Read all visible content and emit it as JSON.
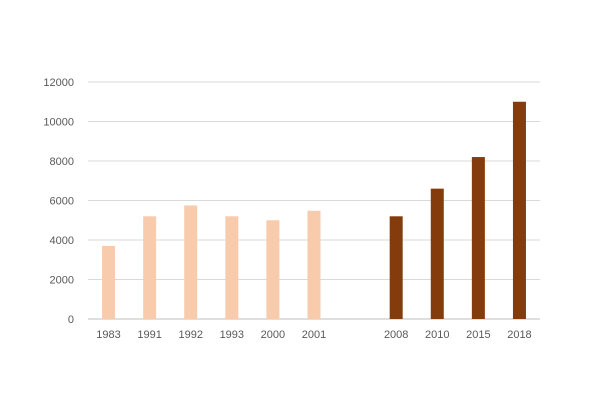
{
  "chart_data": {
    "type": "bar",
    "title": "",
    "xlabel": "",
    "ylabel": "",
    "ylim": [
      0,
      12000
    ],
    "yticks": [
      0,
      2000,
      4000,
      6000,
      8000,
      10000,
      12000
    ],
    "grid": true,
    "legend": "none",
    "categories": [
      "1983",
      "1991",
      "1992",
      "1993",
      "2000",
      "2001",
      "",
      "2008",
      "2010",
      "2015",
      "2018"
    ],
    "values": [
      3700,
      5200,
      5750,
      5200,
      5000,
      5480,
      null,
      5200,
      6600,
      8200,
      11000
    ],
    "bar_colors": [
      "#F8CBAD",
      "#F8CBAD",
      "#F8CBAD",
      "#F8CBAD",
      "#F8CBAD",
      "#F8CBAD",
      null,
      "#843C0C",
      "#843C0C",
      "#843C0C",
      "#843C0C"
    ],
    "colors": {
      "gridline": "#D9D9D9",
      "axis": "#BFBFBF",
      "tick_text": "#595959"
    }
  }
}
